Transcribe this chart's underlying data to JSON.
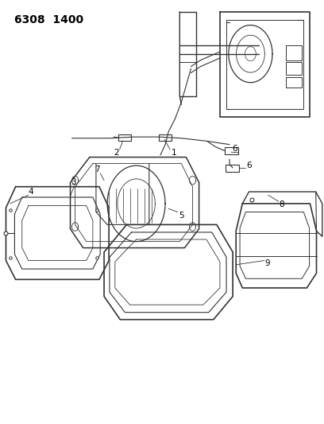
{
  "title": "6308  1400",
  "background_color": "#ffffff",
  "line_color": "#333333",
  "text_color": "#000000",
  "part_labels": [
    "1",
    "2",
    "3",
    "4",
    "5",
    "6",
    "6",
    "7",
    "8",
    "9"
  ]
}
